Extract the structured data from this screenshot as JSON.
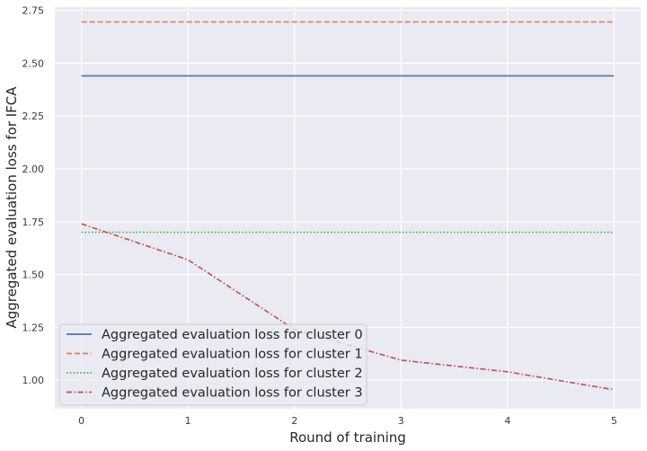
{
  "chart_data": {
    "type": "line",
    "title": "",
    "xlabel": "Round of training",
    "ylabel": "Aggregated evaluation loss for IFCA",
    "x": [
      0,
      1,
      2,
      3,
      4,
      5
    ],
    "xlim": [
      -0.25,
      5.25
    ],
    "ylim": [
      0.865,
      2.765
    ],
    "xticks": [
      "0",
      "1",
      "2",
      "3",
      "4",
      "5"
    ],
    "yticks": [
      "1.00",
      "1.25",
      "1.50",
      "1.75",
      "2.00",
      "2.25",
      "2.50",
      "2.75"
    ],
    "grid": true,
    "legend_position": "lower-left",
    "series": [
      {
        "name": "Aggregated evaluation loss for cluster 0",
        "color": "#4c72b0",
        "dash": "solid",
        "values": [
          2.44,
          2.44,
          2.44,
          2.44,
          2.44,
          2.44
        ]
      },
      {
        "name": "Aggregated evaluation loss for cluster 1",
        "color": "#dd8452",
        "dash": "dashed",
        "values": [
          2.695,
          2.695,
          2.695,
          2.695,
          2.695,
          2.695
        ]
      },
      {
        "name": "Aggregated evaluation loss for cluster 2",
        "color": "#55a868",
        "dash": "dotted",
        "values": [
          1.7,
          1.7,
          1.7,
          1.7,
          1.7,
          1.7
        ]
      },
      {
        "name": "Aggregated evaluation loss for cluster 3",
        "color": "#c44e52",
        "dash": "dashdot",
        "values": [
          1.74,
          1.57,
          1.24,
          1.095,
          1.04,
          0.955
        ]
      }
    ]
  }
}
